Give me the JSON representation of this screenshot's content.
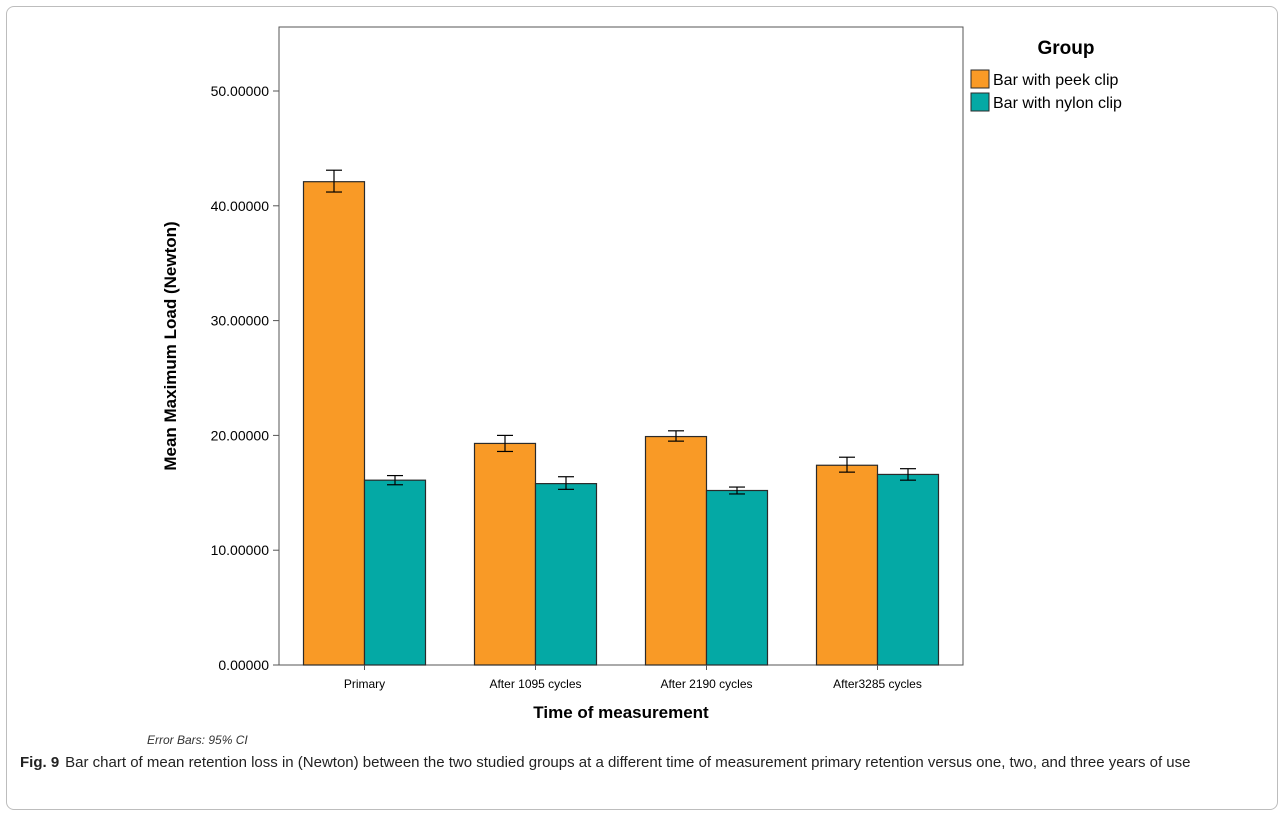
{
  "chart_data": {
    "type": "bar",
    "categories": [
      "Primary",
      "After 1095 cycles",
      "After 2190 cycles",
      "After3285 cycles"
    ],
    "series": [
      {
        "name": "Bar with peek clip",
        "values": [
          42.1,
          19.3,
          19.9,
          17.4
        ],
        "ci_low": [
          41.2,
          18.6,
          19.5,
          16.8
        ],
        "ci_high": [
          43.1,
          20.0,
          20.4,
          18.1
        ]
      },
      {
        "name": "Bar with nylon clip",
        "values": [
          16.1,
          15.8,
          15.2,
          16.6
        ],
        "ci_low": [
          15.7,
          15.3,
          14.9,
          16.1
        ],
        "ci_high": [
          16.5,
          16.4,
          15.5,
          17.1
        ]
      }
    ],
    "xlabel": "Time of measurement",
    "ylabel": "Mean Maximum Load (Newton)",
    "ylim": [
      0,
      55
    ],
    "yticks": [
      0,
      10,
      20,
      30,
      40,
      50
    ],
    "ytick_labels": [
      "0.00000",
      "10.00000",
      "20.00000",
      "30.00000",
      "40.00000",
      "50.00000"
    ],
    "legend_title": "Group",
    "legend_position": "top-right outside plot",
    "colors": {
      "peek": "#f99a26",
      "nylon": "#04a9a5",
      "bar_edge": "#2a2a2a",
      "plot_border": "#555555"
    },
    "grid": false,
    "error_bars": "95% CI"
  },
  "note": "Error Bars: 95% CI",
  "caption": {
    "label": "Fig. 9",
    "text": "Bar chart of mean retention loss in (Newton) between the two studied groups at a different time of measurement primary retention versus one, two, and three years of use"
  }
}
